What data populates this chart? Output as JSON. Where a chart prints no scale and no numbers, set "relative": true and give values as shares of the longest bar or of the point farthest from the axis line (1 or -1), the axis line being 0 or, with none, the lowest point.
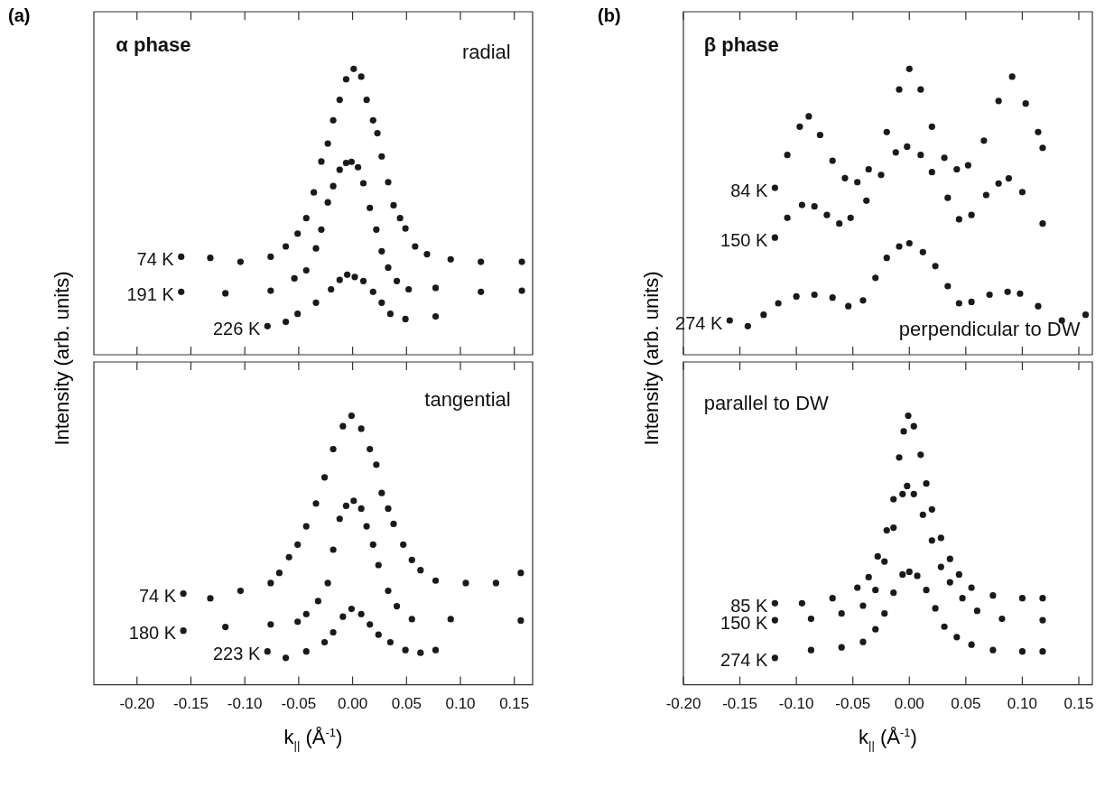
{
  "chart_data": [
    {
      "type": "scatter",
      "title": "(a)",
      "ylabel": "Intensity (arb. units)",
      "relative": true,
      "marker": "circle",
      "legend": false,
      "tick_labels": false,
      "annotations": [
        "α phase",
        "radial"
      ],
      "xlim": [
        -0.24,
        0.167
      ],
      "xticks": [
        {
          "value": -0.2,
          "label": null
        },
        {
          "value": -0.15,
          "label": null
        },
        {
          "value": -0.1,
          "label": null
        },
        {
          "value": -0.05,
          "label": null
        },
        {
          "value": 0,
          "label": null
        },
        {
          "value": 0.05,
          "label": null
        },
        {
          "value": 0.1,
          "label": null
        },
        {
          "value": 0.15,
          "label": null
        }
      ],
      "series": [
        {
          "name": "74 K",
          "color": "#1a1a1a",
          "x": [
            -0.159,
            -0.132,
            -0.104,
            -0.076,
            -0.062,
            -0.051,
            -0.043,
            -0.036,
            -0.029,
            -0.023,
            -0.018,
            -0.012,
            -0.006,
            0.001,
            0.008,
            0.013,
            0.019,
            0.023,
            0.027,
            0.033,
            0.038,
            0.044,
            0.049,
            0.058,
            0.069,
            0.091,
            0.119,
            0.157
          ],
          "values": [
            0.343,
            0.339,
            0.325,
            0.343,
            0.379,
            0.424,
            0.478,
            0.568,
            0.676,
            0.739,
            0.82,
            0.892,
            0.964,
            1.0,
            0.973,
            0.892,
            0.82,
            0.775,
            0.694,
            0.604,
            0.523,
            0.478,
            0.442,
            0.379,
            0.352,
            0.334,
            0.325,
            0.325
          ]
        },
        {
          "name": "191 K",
          "color": "#1a1a1a",
          "x": [
            -0.159,
            -0.118,
            -0.076,
            -0.054,
            -0.043,
            -0.034,
            -0.029,
            -0.023,
            -0.018,
            -0.012,
            -0.006,
            -0.001,
            0.005,
            0.01,
            0.016,
            0.022,
            0.027,
            0.033,
            0.041,
            0.052,
            0.077,
            0.119,
            0.157
          ],
          "values": [
            0.22,
            0.215,
            0.224,
            0.267,
            0.295,
            0.372,
            0.438,
            0.533,
            0.59,
            0.647,
            0.671,
            0.675,
            0.656,
            0.6,
            0.514,
            0.438,
            0.362,
            0.305,
            0.258,
            0.229,
            0.234,
            0.22,
            0.224
          ]
        },
        {
          "name": "226 K",
          "color": "#1a1a1a",
          "x": [
            -0.079,
            -0.062,
            -0.051,
            -0.034,
            -0.02,
            -0.012,
            -0.005,
            0.002,
            0.01,
            0.019,
            0.027,
            0.035,
            0.049,
            0.077
          ],
          "values": [
            0.1,
            0.115,
            0.143,
            0.182,
            0.229,
            0.262,
            0.28,
            0.272,
            0.258,
            0.22,
            0.182,
            0.143,
            0.125,
            0.134
          ]
        }
      ]
    },
    {
      "type": "scatter",
      "xlabel": "k$_{||}$ (Å$^{-1}$)",
      "relative": true,
      "marker": "circle",
      "legend": false,
      "tick_labels": "x",
      "annotations": [
        "tangential"
      ],
      "xlim": [
        -0.24,
        0.167
      ],
      "xticks": [
        {
          "value": -0.2,
          "label": "-0.20"
        },
        {
          "value": -0.15,
          "label": "-0.15"
        },
        {
          "value": -0.1,
          "label": "-0.10"
        },
        {
          "value": -0.05,
          "label": "-0.05"
        },
        {
          "value": 0,
          "label": "0.00"
        },
        {
          "value": 0.05,
          "label": "0.05"
        },
        {
          "value": 0.1,
          "label": "0.10"
        },
        {
          "value": 0.15,
          "label": "0.15"
        }
      ],
      "series": [
        {
          "name": "74 K",
          "color": "#1a1a1a",
          "x": [
            -0.157,
            -0.132,
            -0.104,
            -0.076,
            -0.068,
            -0.059,
            -0.051,
            -0.043,
            -0.034,
            -0.026,
            -0.018,
            -0.009,
            -0.001,
            0.008,
            0.016,
            0.022,
            0.027,
            0.033,
            0.038,
            0.047,
            0.055,
            0.063,
            0.077,
            0.105,
            0.133,
            0.156
          ],
          "values": [
            0.339,
            0.321,
            0.349,
            0.378,
            0.416,
            0.474,
            0.521,
            0.589,
            0.674,
            0.771,
            0.876,
            0.961,
            1.0,
            0.952,
            0.876,
            0.818,
            0.713,
            0.655,
            0.598,
            0.521,
            0.464,
            0.426,
            0.387,
            0.378,
            0.378,
            0.416
          ]
        },
        {
          "name": "180 K",
          "color": "#1a1a1a",
          "x": [
            -0.157,
            -0.118,
            -0.076,
            -0.051,
            -0.043,
            -0.032,
            -0.023,
            -0.018,
            -0.012,
            -0.006,
            0.001,
            0.008,
            0.013,
            0.019,
            0.024,
            0.033,
            0.041,
            0.055,
            0.091,
            0.156
          ],
          "values": [
            0.201,
            0.215,
            0.224,
            0.234,
            0.263,
            0.311,
            0.378,
            0.502,
            0.617,
            0.665,
            0.684,
            0.655,
            0.589,
            0.521,
            0.445,
            0.349,
            0.292,
            0.244,
            0.244,
            0.239
          ]
        },
        {
          "name": "223 K",
          "color": "#1a1a1a",
          "x": [
            -0.079,
            -0.062,
            -0.043,
            -0.026,
            -0.018,
            -0.009,
            -0.001,
            0.008,
            0.016,
            0.024,
            0.035,
            0.049,
            0.063,
            0.077
          ],
          "values": [
            0.124,
            0.1,
            0.124,
            0.158,
            0.195,
            0.253,
            0.282,
            0.263,
            0.224,
            0.186,
            0.158,
            0.129,
            0.119,
            0.129
          ]
        }
      ]
    },
    {
      "type": "scatter",
      "title": "(b)",
      "ylabel": "Intensity (arb. units)",
      "relative": true,
      "marker": "circle",
      "legend": false,
      "tick_labels": false,
      "annotations": [
        "β phase",
        "perpendicular to DW"
      ],
      "xlim": [
        -0.2,
        0.162
      ],
      "xticks": [
        {
          "value": -0.2,
          "label": null
        },
        {
          "value": -0.15,
          "label": null
        },
        {
          "value": -0.1,
          "label": null
        },
        {
          "value": -0.05,
          "label": null
        },
        {
          "value": 0,
          "label": null
        },
        {
          "value": 0.05,
          "label": null
        },
        {
          "value": 0.1,
          "label": null
        },
        {
          "value": 0.15,
          "label": null
        }
      ],
      "series": [
        {
          "name": "84 K",
          "color": "#1a1a1a",
          "x": [
            -0.119,
            -0.108,
            -0.097,
            -0.089,
            -0.079,
            -0.068,
            -0.057,
            -0.046,
            -0.036,
            -0.02,
            -0.009,
            0,
            0.01,
            0.02,
            0.031,
            0.042,
            0.052,
            0.066,
            0.079,
            0.091,
            0.103,
            0.114,
            0.118
          ],
          "values": [
            0.584,
            0.699,
            0.798,
            0.834,
            0.769,
            0.679,
            0.618,
            0.604,
            0.649,
            0.779,
            0.928,
            1.0,
            0.928,
            0.798,
            0.689,
            0.649,
            0.663,
            0.749,
            0.888,
            0.973,
            0.879,
            0.779,
            0.724
          ]
        },
        {
          "name": "150 K",
          "color": "#1a1a1a",
          "x": [
            -0.119,
            -0.108,
            -0.095,
            -0.084,
            -0.073,
            -0.062,
            -0.052,
            -0.038,
            -0.025,
            -0.012,
            -0.002,
            0.01,
            0.02,
            0.034,
            0.044,
            0.055,
            0.068,
            0.079,
            0.088,
            0.1,
            0.118
          ],
          "values": [
            0.41,
            0.479,
            0.524,
            0.519,
            0.489,
            0.459,
            0.479,
            0.539,
            0.629,
            0.708,
            0.728,
            0.699,
            0.639,
            0.549,
            0.474,
            0.489,
            0.559,
            0.599,
            0.617,
            0.569,
            0.459
          ]
        },
        {
          "name": "274 K",
          "color": "#1a1a1a",
          "x": [
            -0.159,
            -0.143,
            -0.129,
            -0.116,
            -0.1,
            -0.084,
            -0.068,
            -0.054,
            -0.041,
            -0.03,
            -0.02,
            -0.009,
            0,
            0.012,
            0.023,
            0.034,
            0.044,
            0.055,
            0.071,
            0.087,
            0.098,
            0.114,
            0.135,
            0.156
          ],
          "values": [
            0.12,
            0.1,
            0.14,
            0.18,
            0.204,
            0.21,
            0.2,
            0.17,
            0.19,
            0.269,
            0.339,
            0.379,
            0.39,
            0.359,
            0.31,
            0.24,
            0.18,
            0.185,
            0.21,
            0.22,
            0.214,
            0.17,
            0.12,
            0.14
          ]
        }
      ]
    },
    {
      "type": "scatter",
      "xlabel": "k$_{||}$ (Å$^{-1}$)",
      "relative": true,
      "marker": "circle",
      "legend": false,
      "tick_labels": "x",
      "annotations": [
        "parallel to DW"
      ],
      "xlim": [
        -0.2,
        0.162
      ],
      "xticks": [
        {
          "value": -0.2,
          "label": "-0.20"
        },
        {
          "value": -0.15,
          "label": "-0.15"
        },
        {
          "value": -0.1,
          "label": "-0.10"
        },
        {
          "value": -0.05,
          "label": "-0.05"
        },
        {
          "value": 0,
          "label": "0.00"
        },
        {
          "value": 0.05,
          "label": "0.05"
        },
        {
          "value": 0.1,
          "label": "0.10"
        },
        {
          "value": 0.15,
          "label": "0.15"
        }
      ],
      "series": [
        {
          "name": "85 K",
          "color": "#1a1a1a",
          "x": [
            -0.119,
            -0.095,
            -0.068,
            -0.046,
            -0.036,
            -0.028,
            -0.02,
            -0.014,
            -0.009,
            -0.005,
            -0.001,
            0.004,
            0.01,
            0.015,
            0.02,
            0.028,
            0.036,
            0.044,
            0.055,
            0.074,
            0.1,
            0.118
          ],
          "values": [
            0.303,
            0.303,
            0.322,
            0.361,
            0.4,
            0.477,
            0.574,
            0.69,
            0.845,
            0.942,
            1.0,
            0.961,
            0.855,
            0.748,
            0.652,
            0.546,
            0.468,
            0.41,
            0.361,
            0.332,
            0.322,
            0.322
          ]
        },
        {
          "name": "150 K",
          "color": "#1a1a1a",
          "x": [
            -0.119,
            -0.087,
            -0.06,
            -0.041,
            -0.03,
            -0.022,
            -0.014,
            -0.006,
            -0.002,
            0.004,
            0.012,
            0.02,
            0.028,
            0.036,
            0.047,
            0.06,
            0.082,
            0.118
          ],
          "values": [
            0.24,
            0.245,
            0.265,
            0.294,
            0.352,
            0.458,
            0.584,
            0.709,
            0.739,
            0.709,
            0.632,
            0.536,
            0.438,
            0.381,
            0.322,
            0.275,
            0.245,
            0.24
          ]
        },
        {
          "name": "274 K",
          "color": "#1a1a1a",
          "x": [
            -0.119,
            -0.087,
            -0.06,
            -0.041,
            -0.03,
            -0.022,
            -0.014,
            -0.006,
            0,
            0.007,
            0.015,
            0.023,
            0.031,
            0.042,
            0.055,
            0.074,
            0.1,
            0.118
          ],
          "values": [
            0.1,
            0.129,
            0.139,
            0.159,
            0.206,
            0.265,
            0.342,
            0.41,
            0.42,
            0.405,
            0.352,
            0.284,
            0.216,
            0.177,
            0.149,
            0.129,
            0.124,
            0.124
          ]
        }
      ]
    }
  ]
}
